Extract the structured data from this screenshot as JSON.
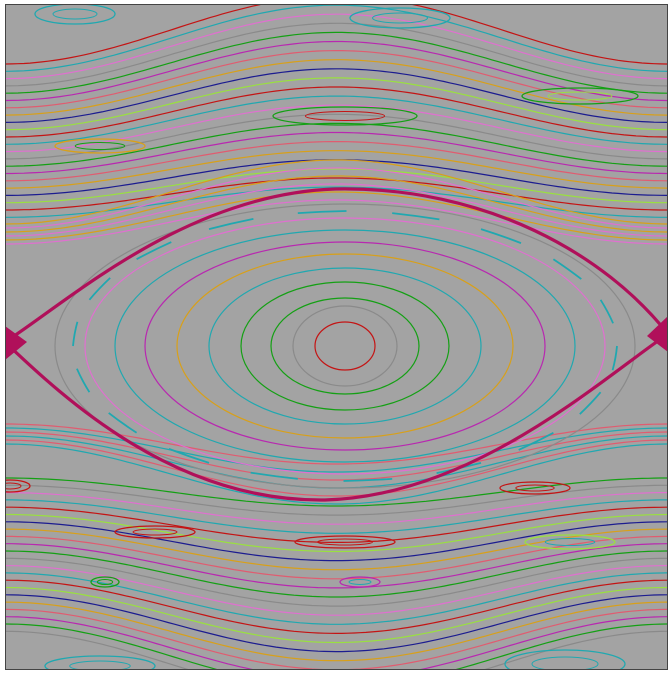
{
  "figure": {
    "kind": "phase-portrait",
    "background_color": "#a3a3a3",
    "border_color": "#444444",
    "has_text": false,
    "separatrix_color": "#b0105a",
    "palette": [
      "#c41414",
      "#d8a01a",
      "#14a014",
      "#20a8b0",
      "#1c1c90",
      "#b828b0",
      "#e070d0",
      "#9ae040",
      "#e05c70",
      "#8a8a8a"
    ],
    "description_tags": [
      "pendulum",
      "cat-eye",
      "island-chains",
      "KAM-curves"
    ]
  }
}
